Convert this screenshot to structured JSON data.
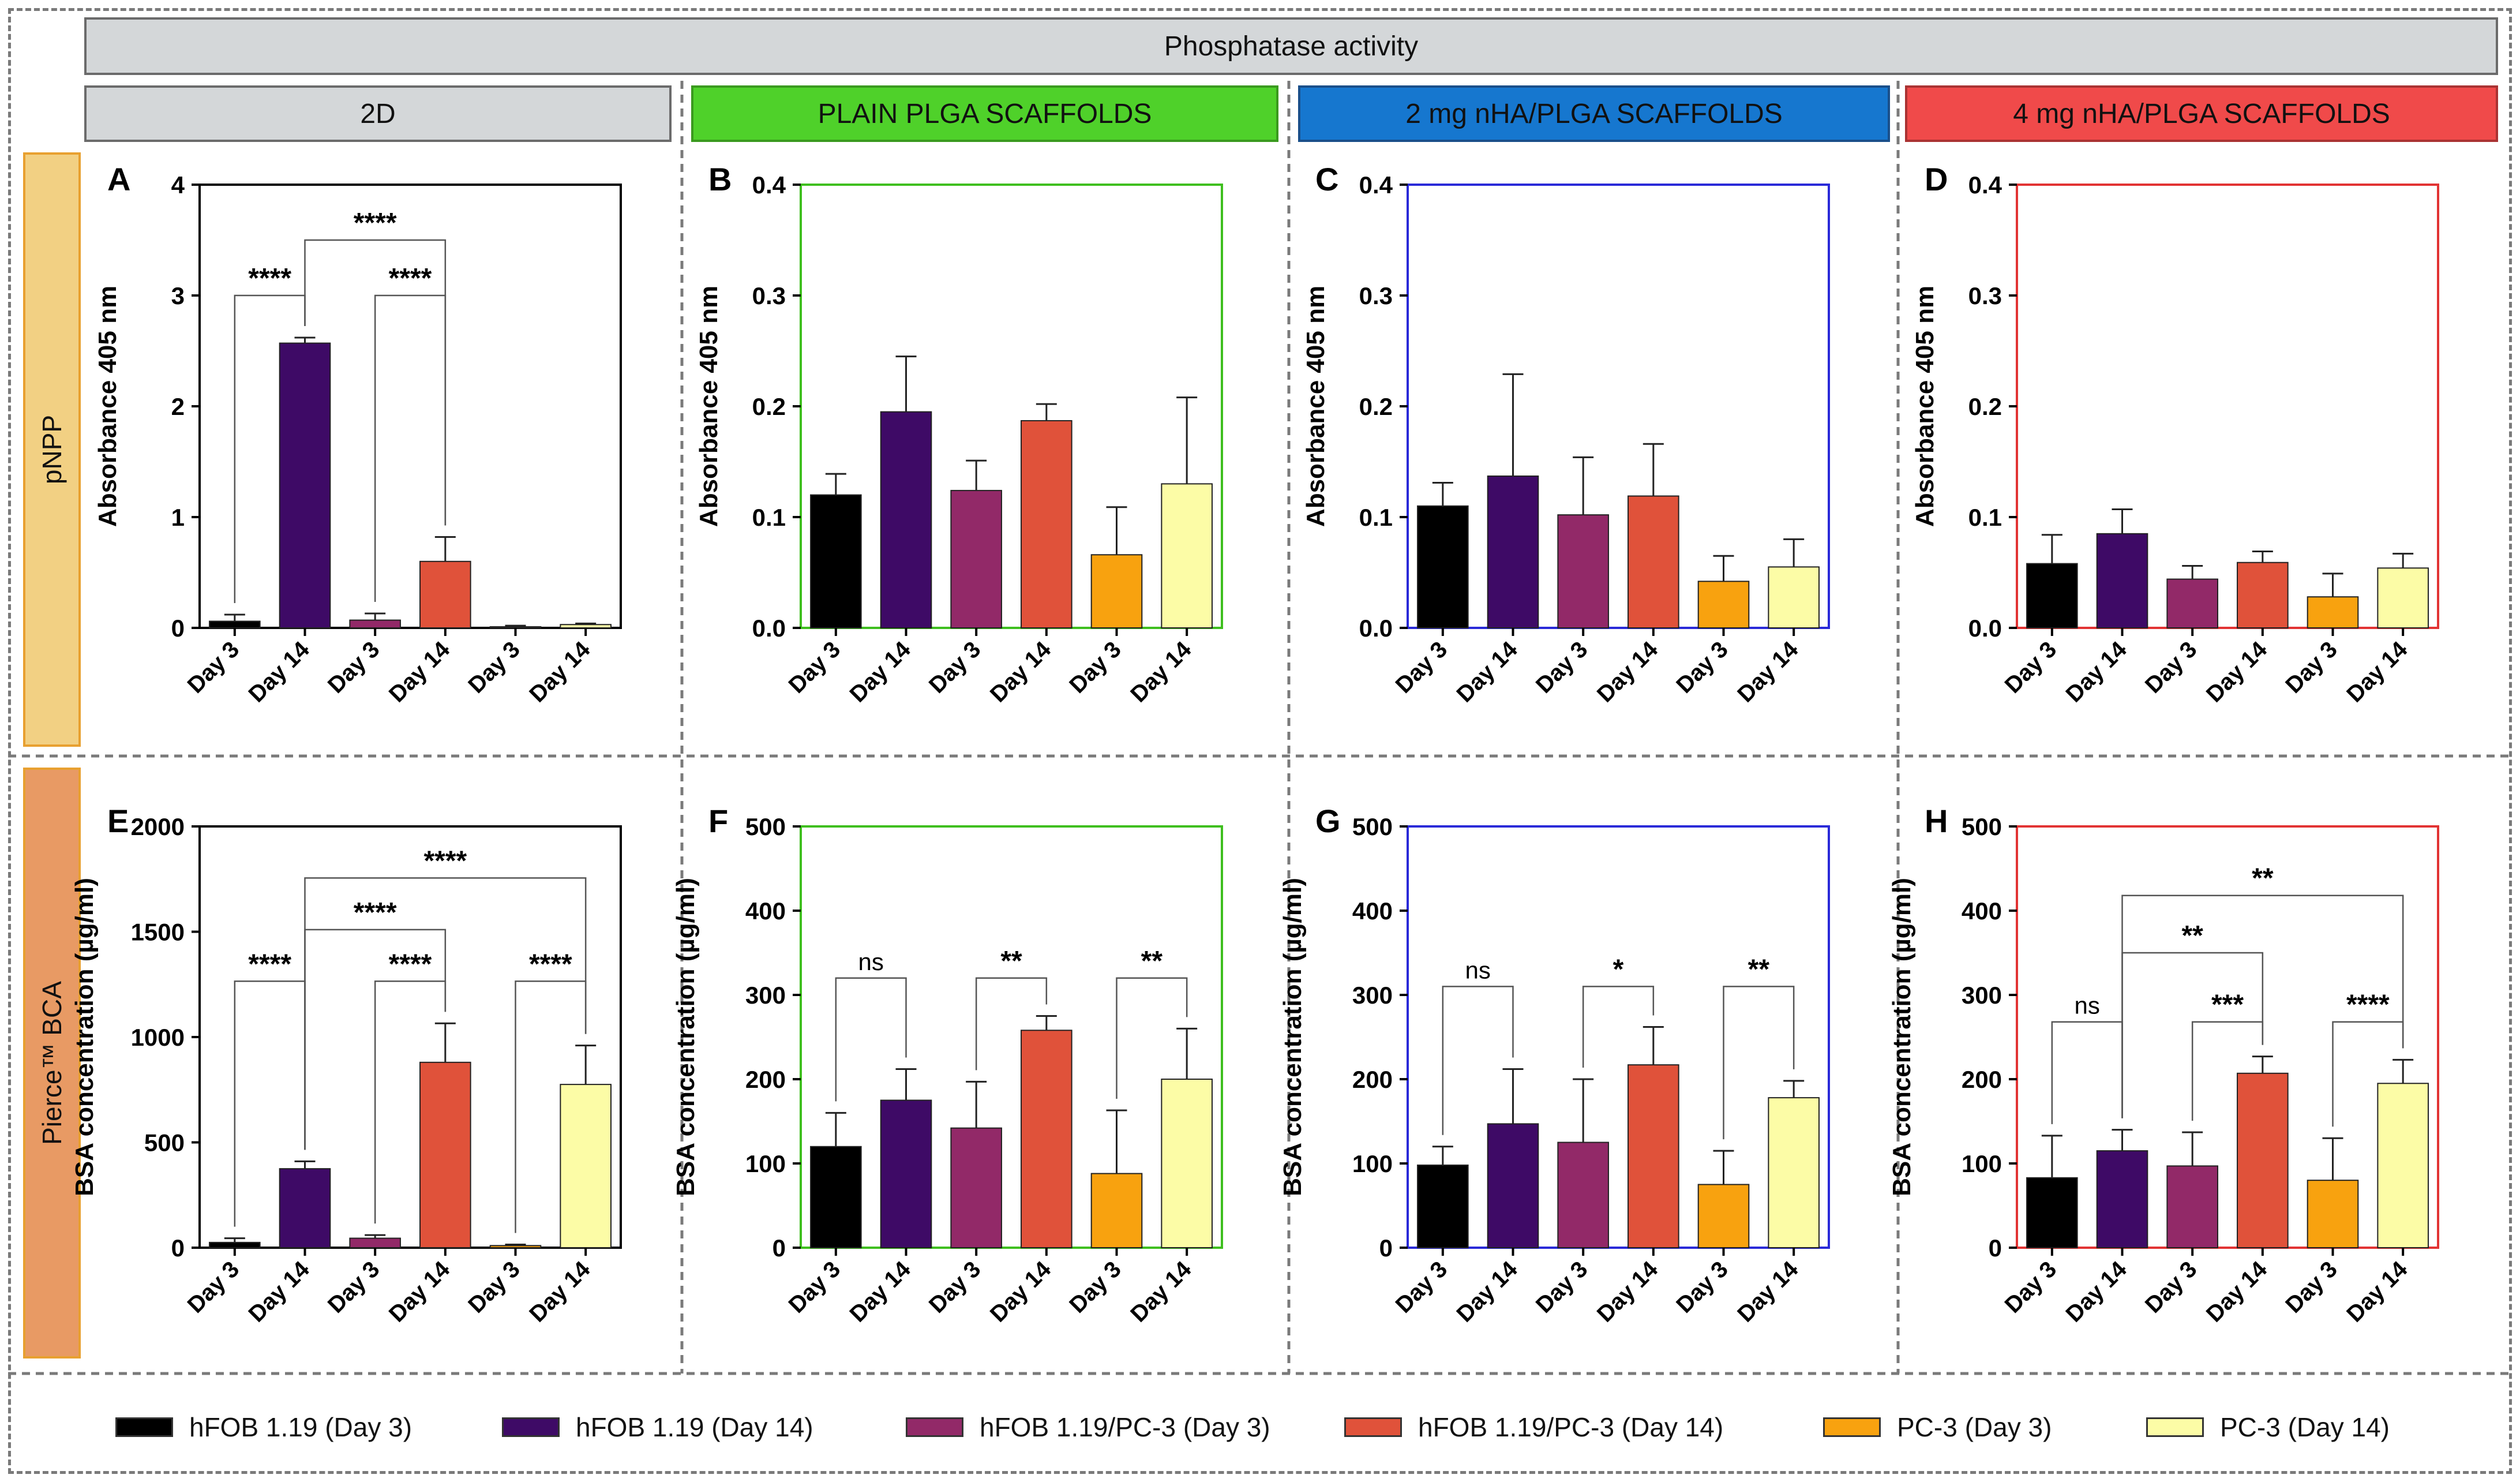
{
  "header": {
    "title": "Phosphatase activity"
  },
  "columns": [
    {
      "label": "2D",
      "bg": "#d4d7d9",
      "border": "#6b6b6b"
    },
    {
      "label": "PLAIN PLGA SCAFFOLDS",
      "bg": "#4fd12a",
      "border": "#3a9a1e"
    },
    {
      "label": "2 mg nHA/PLGA SCAFFOLDS",
      "bg": "#1677cf",
      "border": "#1a4f8a"
    },
    {
      "label": "4 mg nHA/PLGA SCAFFOLDS",
      "bg": "#f04a4a",
      "border": "#a33"
    }
  ],
  "rows": [
    {
      "label": "pNPP",
      "bg": "#f2d083"
    },
    {
      "label": "Pierce™ BCA",
      "bg": "#e89a64"
    }
  ],
  "colors": {
    "bars": [
      "#000000",
      "#3e0a66",
      "#922968",
      "#e0523a",
      "#f8a20f",
      "#fcfca6"
    ],
    "frame": [
      "#000000",
      "#3fbf1f",
      "#2a2ad8",
      "#e23333"
    ]
  },
  "legend": [
    {
      "label": "hFOB 1.19 (Day 3)",
      "color": "#000000"
    },
    {
      "label": "hFOB 1.19 (Day 14)",
      "color": "#3e0a66"
    },
    {
      "label": "hFOB 1.19/PC-3 (Day 3)",
      "color": "#922968"
    },
    {
      "label": "hFOB 1.19/PC-3 (Day 14)",
      "color": "#e0523a"
    },
    {
      "label": "PC-3 (Day 3)",
      "color": "#f8a20f"
    },
    {
      "label": "PC-3 (Day 14)",
      "color": "#fcfca6"
    }
  ],
  "chart_data": [
    {
      "panel": "A",
      "type": "bar",
      "ylabel": "Absorbance 405 nm",
      "ylim": [
        0,
        4
      ],
      "yticks": [
        "0",
        "1",
        "2",
        "3",
        "4"
      ],
      "categories": [
        "Day 3",
        "Day 14",
        "Day 3",
        "Day 14",
        "Day 3",
        "Day 14"
      ],
      "values": [
        0.06,
        2.57,
        0.07,
        0.6,
        0.01,
        0.03
      ],
      "errors": [
        0.06,
        0.05,
        0.06,
        0.22,
        0.01,
        0.01
      ],
      "annotations": [
        {
          "from": 0,
          "to": 1,
          "text": "****",
          "level": 3.0
        },
        {
          "from": 2,
          "to": 3,
          "text": "****",
          "level": 3.0
        },
        {
          "from": 1,
          "to": 3,
          "text": "****",
          "level": 3.5
        }
      ]
    },
    {
      "panel": "B",
      "type": "bar",
      "ylabel": "Absorbance 405 nm",
      "ylim": [
        0,
        0.4
      ],
      "yticks": [
        "0.0",
        "0.1",
        "0.2",
        "0.3",
        "0.4"
      ],
      "categories": [
        "Day 3",
        "Day 14",
        "Day 3",
        "Day 14",
        "Day 3",
        "Day 14"
      ],
      "values": [
        0.12,
        0.195,
        0.124,
        0.187,
        0.066,
        0.13
      ],
      "errors": [
        0.019,
        0.05,
        0.027,
        0.015,
        0.043,
        0.078
      ],
      "annotations": []
    },
    {
      "panel": "C",
      "type": "bar",
      "ylabel": "Absorbance 405 nm",
      "ylim": [
        0,
        0.4
      ],
      "yticks": [
        "0.0",
        "0.1",
        "0.2",
        "0.3",
        "0.4"
      ],
      "categories": [
        "Day 3",
        "Day 14",
        "Day 3",
        "Day 14",
        "Day 3",
        "Day 14"
      ],
      "values": [
        0.11,
        0.137,
        0.102,
        0.119,
        0.042,
        0.055
      ],
      "errors": [
        0.021,
        0.092,
        0.052,
        0.047,
        0.023,
        0.025
      ],
      "annotations": []
    },
    {
      "panel": "D",
      "type": "bar",
      "ylabel": "Absorbance 405 nm",
      "ylim": [
        0,
        0.4
      ],
      "yticks": [
        "0.0",
        "0.1",
        "0.2",
        "0.3",
        "0.4"
      ],
      "categories": [
        "Day 3",
        "Day 14",
        "Day 3",
        "Day 14",
        "Day 3",
        "Day 14"
      ],
      "values": [
        0.058,
        0.085,
        0.044,
        0.059,
        0.028,
        0.054
      ],
      "errors": [
        0.026,
        0.022,
        0.012,
        0.01,
        0.021,
        0.013
      ],
      "annotations": []
    },
    {
      "panel": "E",
      "type": "bar",
      "ylabel": "BSA concentration (µg/ml)",
      "ylim": [
        0,
        2000
      ],
      "yticks": [
        "0",
        "500",
        "1000",
        "1500",
        "2000"
      ],
      "categories": [
        "Day 3",
        "Day 14",
        "Day 3",
        "Day 14",
        "Day 3",
        "Day 14"
      ],
      "values": [
        25,
        375,
        45,
        880,
        10,
        775
      ],
      "errors": [
        20,
        35,
        15,
        185,
        5,
        185
      ],
      "annotations": [
        {
          "from": 0,
          "to": 1,
          "text": "****",
          "level": 1265
        },
        {
          "from": 2,
          "to": 3,
          "text": "****",
          "level": 1265
        },
        {
          "from": 4,
          "to": 5,
          "text": "****",
          "level": 1265
        },
        {
          "from": 1,
          "to": 3,
          "text": "****",
          "level": 1510
        },
        {
          "from": 1,
          "to": 5,
          "text": "****",
          "level": 1755
        }
      ]
    },
    {
      "panel": "F",
      "type": "bar",
      "ylabel": "BSA concentration (µg/ml)",
      "ylim": [
        0,
        500
      ],
      "yticks": [
        "0",
        "100",
        "200",
        "300",
        "400",
        "500"
      ],
      "categories": [
        "Day 3",
        "Day 14",
        "Day 3",
        "Day 14",
        "Day 3",
        "Day 14"
      ],
      "values": [
        120,
        175,
        142,
        258,
        88,
        200
      ],
      "errors": [
        40,
        37,
        55,
        17,
        75,
        60
      ],
      "annotations": [
        {
          "from": 0,
          "to": 1,
          "text": "ns",
          "level": 320
        },
        {
          "from": 2,
          "to": 3,
          "text": "**",
          "level": 320
        },
        {
          "from": 4,
          "to": 5,
          "text": "**",
          "level": 320
        }
      ]
    },
    {
      "panel": "G",
      "type": "bar",
      "ylabel": "BSA concentration (µg/ml)",
      "ylim": [
        0,
        500
      ],
      "yticks": [
        "0",
        "100",
        "200",
        "300",
        "400",
        "500"
      ],
      "categories": [
        "Day 3",
        "Day 14",
        "Day 3",
        "Day 14",
        "Day 3",
        "Day 14"
      ],
      "values": [
        98,
        147,
        125,
        217,
        75,
        178
      ],
      "errors": [
        22,
        65,
        75,
        45,
        40,
        20
      ],
      "annotations": [
        {
          "from": 0,
          "to": 1,
          "text": "ns",
          "level": 310
        },
        {
          "from": 2,
          "to": 3,
          "text": "*",
          "level": 310
        },
        {
          "from": 4,
          "to": 5,
          "text": "**",
          "level": 310
        }
      ]
    },
    {
      "panel": "H",
      "type": "bar",
      "ylabel": "BSA concentration (µg/ml)",
      "ylim": [
        0,
        500
      ],
      "yticks": [
        "0",
        "100",
        "200",
        "300",
        "400",
        "500"
      ],
      "categories": [
        "Day 3",
        "Day 14",
        "Day 3",
        "Day 14",
        "Day 3",
        "Day 14"
      ],
      "values": [
        83,
        115,
        97,
        207,
        80,
        195
      ],
      "errors": [
        50,
        25,
        40,
        20,
        50,
        28
      ],
      "annotations": [
        {
          "from": 0,
          "to": 1,
          "text": "ns",
          "level": 268
        },
        {
          "from": 2,
          "to": 3,
          "text": "***",
          "level": 268
        },
        {
          "from": 4,
          "to": 5,
          "text": "****",
          "level": 268
        },
        {
          "from": 1,
          "to": 3,
          "text": "**",
          "level": 350
        },
        {
          "from": 1,
          "to": 5,
          "text": "**",
          "level": 418
        }
      ]
    }
  ]
}
